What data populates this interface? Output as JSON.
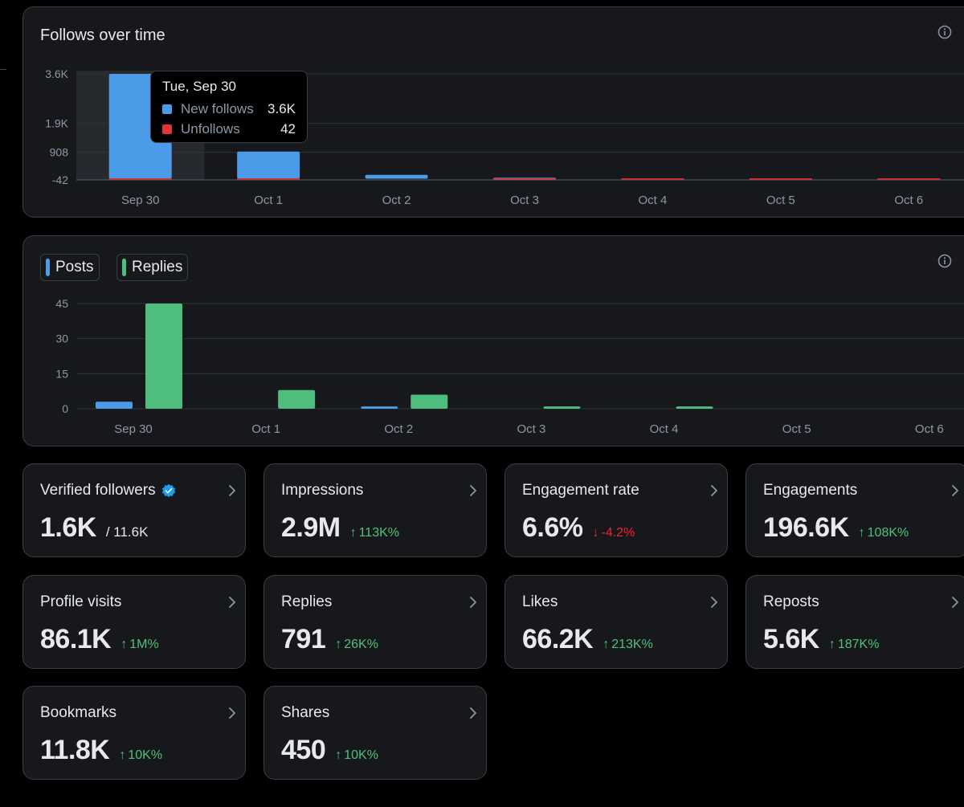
{
  "colors": {
    "blue": "#4c9be8",
    "red": "#e0343a",
    "green": "#4ebd7e",
    "grid": "#2f3336",
    "axis_text": "#8b98a5"
  },
  "follows_chart": {
    "title": "Follows over time",
    "tooltip": {
      "date": "Tue, Sep 30",
      "rows": [
        {
          "label": "New follows",
          "value": "3.6K"
        },
        {
          "label": "Unfollows",
          "value": "42"
        }
      ]
    }
  },
  "posts_chart": {
    "legend": [
      {
        "label": "Posts"
      },
      {
        "label": "Replies"
      }
    ]
  },
  "chart_data": [
    {
      "type": "bar",
      "title": "Follows over time",
      "categories": [
        "Sep 30",
        "Oct 1",
        "Oct 2",
        "Oct 3",
        "Oct 4",
        "Oct 5",
        "Oct 6"
      ],
      "y_ticks": [
        "3.6K",
        "1.9K",
        "908",
        "-42"
      ],
      "y_tick_values": [
        3600,
        1900,
        908,
        -42
      ],
      "ylim": [
        -42,
        3600
      ],
      "series": [
        {
          "name": "New follows",
          "values": [
            3600,
            930,
            130,
            30,
            0,
            0,
            0
          ]
        },
        {
          "name": "Unfollows",
          "values": [
            42,
            30,
            0,
            20,
            30,
            35,
            35
          ]
        }
      ],
      "highlighted_category": "Sep 30"
    },
    {
      "type": "bar",
      "title": "",
      "categories": [
        "Sep 30",
        "Oct 1",
        "Oct 2",
        "Oct 3",
        "Oct 4",
        "Oct 5",
        "Oct 6"
      ],
      "y_ticks": [
        "45",
        "30",
        "15",
        "0"
      ],
      "y_tick_values": [
        45,
        30,
        15,
        0
      ],
      "ylim": [
        0,
        45
      ],
      "series": [
        {
          "name": "Posts",
          "values": [
            3,
            0,
            1,
            0,
            0,
            0,
            0
          ]
        },
        {
          "name": "Replies",
          "values": [
            45,
            8,
            6,
            1,
            1,
            0,
            0
          ]
        }
      ]
    }
  ],
  "metrics": [
    {
      "label": "Verified followers",
      "value": "1.6K",
      "sub": "/ 11.6K",
      "delta": "",
      "trend": "none",
      "verified": true
    },
    {
      "label": "Impressions",
      "value": "2.9M",
      "sub": "",
      "delta": "113K%",
      "trend": "up",
      "verified": false
    },
    {
      "label": "Engagement rate",
      "value": "6.6%",
      "sub": "",
      "delta": "-4.2%",
      "trend": "down",
      "verified": false
    },
    {
      "label": "Engagements",
      "value": "196.6K",
      "sub": "",
      "delta": "108K%",
      "trend": "up",
      "verified": false
    },
    {
      "label": "Profile visits",
      "value": "86.1K",
      "sub": "",
      "delta": "1M%",
      "trend": "up",
      "verified": false
    },
    {
      "label": "Replies",
      "value": "791",
      "sub": "",
      "delta": "26K%",
      "trend": "up",
      "verified": false
    },
    {
      "label": "Likes",
      "value": "66.2K",
      "sub": "",
      "delta": "213K%",
      "trend": "up",
      "verified": false
    },
    {
      "label": "Reposts",
      "value": "5.6K",
      "sub": "",
      "delta": "187K%",
      "trend": "up",
      "verified": false
    },
    {
      "label": "Bookmarks",
      "value": "11.8K",
      "sub": "",
      "delta": "10K%",
      "trend": "up",
      "verified": false
    },
    {
      "label": "Shares",
      "value": "450",
      "sub": "",
      "delta": "10K%",
      "trend": "up",
      "verified": false
    }
  ]
}
